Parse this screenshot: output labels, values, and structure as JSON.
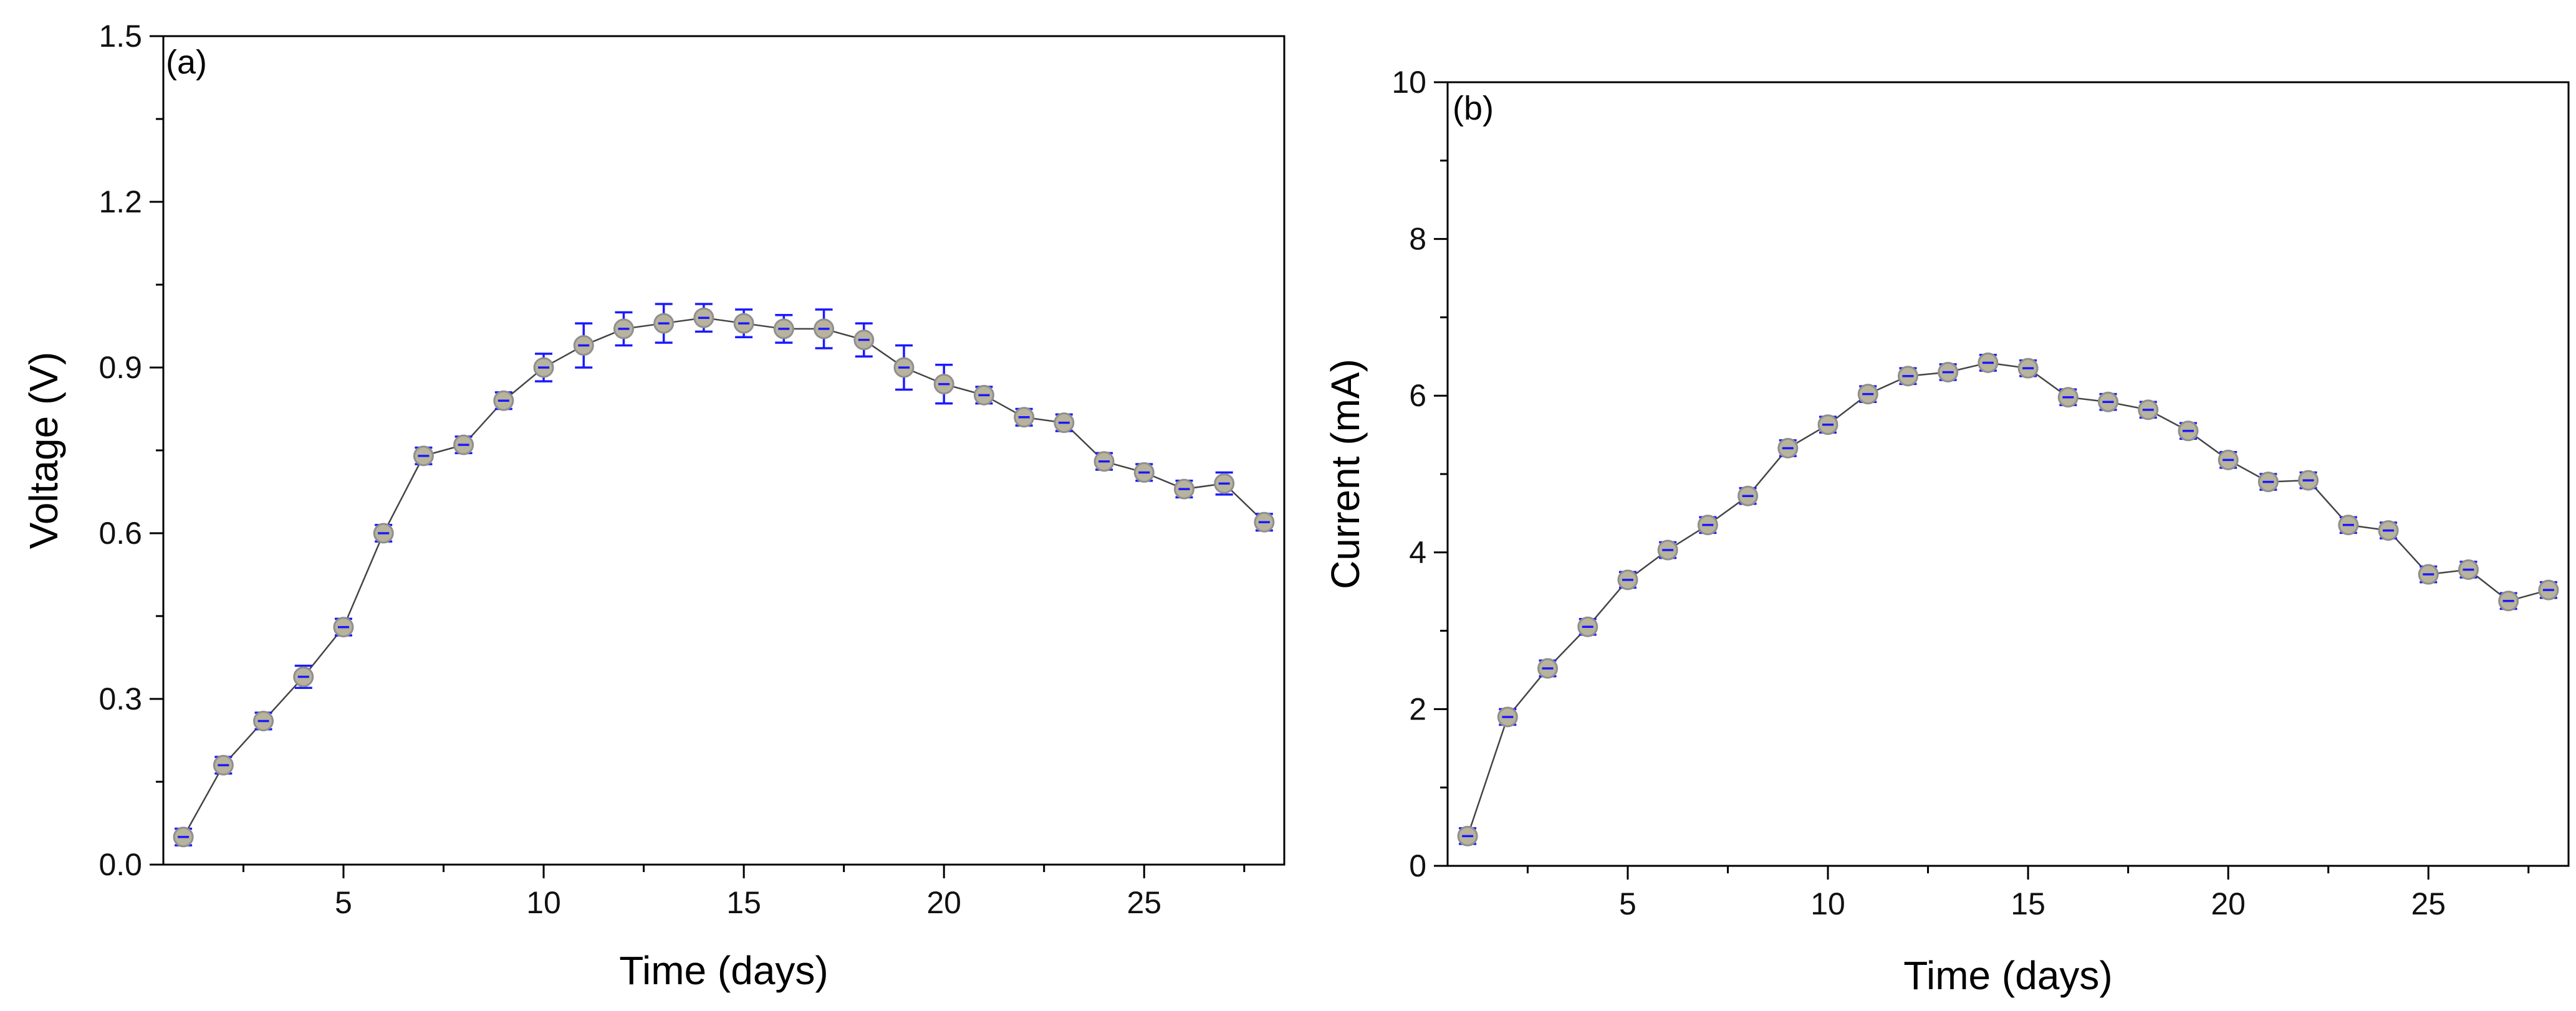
{
  "chart_data": [
    {
      "type": "scatter",
      "panel_label": "(a)",
      "xlabel": "Time (days)",
      "ylabel": "Voltage (V)",
      "xlim": [
        0.5,
        28.5
      ],
      "ylim": [
        0.0,
        1.5
      ],
      "xticks": [
        5,
        10,
        15,
        20,
        25
      ],
      "xtick_labels": [
        "5",
        "10",
        "15",
        "20",
        "25"
      ],
      "yticks": [
        0.0,
        0.3,
        0.6,
        0.9,
        1.2,
        1.5
      ],
      "ytick_labels": [
        "0.0",
        "0.3",
        "0.6",
        "0.9",
        "1.2",
        "1.5"
      ],
      "series": [
        {
          "name": "Voltage",
          "x": [
            1,
            2,
            3,
            4,
            5,
            6,
            7,
            8,
            9,
            10,
            11,
            12,
            13,
            14,
            15,
            16,
            17,
            18,
            19,
            20,
            21,
            22,
            23,
            24,
            25,
            26,
            27,
            28
          ],
          "y": [
            0.05,
            0.18,
            0.26,
            0.34,
            0.43,
            0.6,
            0.74,
            0.76,
            0.84,
            0.9,
            0.94,
            0.97,
            0.98,
            0.99,
            0.98,
            0.97,
            0.97,
            0.95,
            0.9,
            0.87,
            0.85,
            0.81,
            0.8,
            0.73,
            0.71,
            0.68,
            0.69,
            0.62
          ],
          "yerr": [
            0.015,
            0.015,
            0.015,
            0.02,
            0.015,
            0.015,
            0.015,
            0.015,
            0.015,
            0.025,
            0.04,
            0.03,
            0.035,
            0.025,
            0.025,
            0.025,
            0.035,
            0.03,
            0.04,
            0.035,
            0.015,
            0.015,
            0.015,
            0.015,
            0.015,
            0.015,
            0.02,
            0.015
          ]
        }
      ]
    },
    {
      "type": "scatter",
      "panel_label": "(b)",
      "xlabel": "Time (days)",
      "ylabel": "Current (mA)",
      "xlim": [
        0.5,
        28.5
      ],
      "ylim": [
        0,
        10
      ],
      "xticks": [
        5,
        10,
        15,
        20,
        25
      ],
      "xtick_labels": [
        "5",
        "10",
        "15",
        "20",
        "25"
      ],
      "yticks": [
        0,
        2,
        4,
        6,
        8,
        10
      ],
      "ytick_labels": [
        "0",
        "2",
        "4",
        "6",
        "8",
        "10"
      ],
      "series": [
        {
          "name": "Current",
          "x": [
            1,
            2,
            3,
            4,
            5,
            6,
            7,
            8,
            9,
            10,
            11,
            12,
            13,
            14,
            15,
            16,
            17,
            18,
            19,
            20,
            21,
            22,
            23,
            24,
            25,
            26,
            27,
            28
          ],
          "y": [
            0.38,
            1.9,
            2.52,
            3.05,
            3.65,
            4.03,
            4.35,
            4.72,
            5.33,
            5.63,
            6.02,
            6.25,
            6.3,
            6.42,
            6.35,
            5.98,
            5.92,
            5.82,
            5.55,
            5.18,
            4.9,
            4.92,
            4.35,
            4.28,
            3.72,
            3.78,
            3.38,
            3.52
          ],
          "yerr": [
            0.1,
            0.1,
            0.1,
            0.1,
            0.1,
            0.1,
            0.1,
            0.1,
            0.1,
            0.1,
            0.1,
            0.1,
            0.1,
            0.1,
            0.1,
            0.1,
            0.1,
            0.1,
            0.1,
            0.1,
            0.1,
            0.1,
            0.1,
            0.1,
            0.1,
            0.1,
            0.1,
            0.1
          ]
        }
      ]
    }
  ]
}
